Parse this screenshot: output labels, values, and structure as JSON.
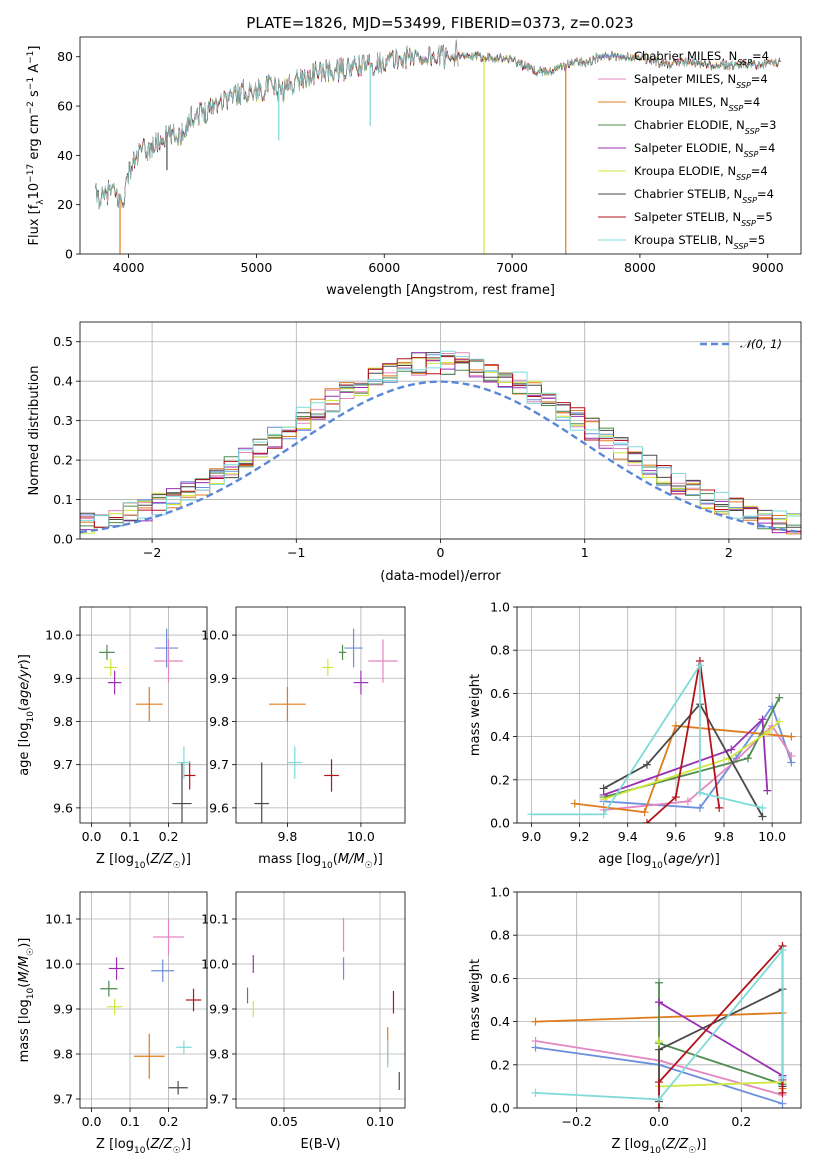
{
  "title": "PLATE=1826, MJD=53499, FIBERID=0373, z=0.023",
  "colors": {
    "Chabrier MILES": "#6b8fdc",
    "Salpeter MILES": "#e486c0",
    "Kroupa MILES": "#e07b1c",
    "Chabrier ELODIE": "#4f8a4f",
    "Salpeter ELODIE": "#9b2fb2",
    "Kroupa ELODIE": "#cfe83a",
    "Chabrier STELIB": "#4a4a4a",
    "Salpeter STELIB": "#b3141c",
    "Kroupa STELIB": "#7fdad9",
    "normal": "#5b87d8"
  },
  "legend": [
    {
      "label": "Chabrier MILES, N",
      "sub": "SSP",
      "tail": "=4",
      "key": "Chabrier MILES"
    },
    {
      "label": "Salpeter MILES, N",
      "sub": "SSP",
      "tail": "=4",
      "key": "Salpeter MILES"
    },
    {
      "label": "Kroupa MILES, N",
      "sub": "SSP",
      "tail": "=4",
      "key": "Kroupa MILES"
    },
    {
      "label": "Chabrier ELODIE, N",
      "sub": "SSP",
      "tail": "=3",
      "key": "Chabrier ELODIE"
    },
    {
      "label": "Salpeter ELODIE, N",
      "sub": "SSP",
      "tail": "=4",
      "key": "Salpeter ELODIE"
    },
    {
      "label": "Kroupa ELODIE, N",
      "sub": "SSP",
      "tail": "=4",
      "key": "Kroupa ELODIE"
    },
    {
      "label": "Chabrier STELIB, N",
      "sub": "SSP",
      "tail": "=4",
      "key": "Chabrier STELIB"
    },
    {
      "label": "Salpeter STELIB, N",
      "sub": "SSP",
      "tail": "=5",
      "key": "Salpeter STELIB"
    },
    {
      "label": "Kroupa STELIB, N",
      "sub": "SSP",
      "tail": "=5",
      "key": "Kroupa STELIB"
    }
  ],
  "normal_label": "𝒩(0, 1)",
  "chart_data": [
    {
      "id": "spectrum",
      "type": "line",
      "xlabel": "wavelength [Angstrom, rest frame]",
      "ylabel": "Flux [f_λ 10^-17 erg cm^-2 s^-1 A^-1]",
      "xlim": [
        3620,
        9260
      ],
      "ylim": [
        0,
        88
      ],
      "xticks": [
        4000,
        5000,
        6000,
        7000,
        8000,
        9000
      ],
      "yticks": [
        0,
        20,
        40,
        60,
        80
      ],
      "grid": false,
      "continuum": {
        "x": [
          3740,
          3800,
          3850,
          3900,
          3950,
          4000,
          4050,
          4100,
          4150,
          4200,
          4300,
          4400,
          4500,
          4600,
          4700,
          4800,
          4900,
          5000,
          5100,
          5200,
          5300,
          5400,
          5500,
          5600,
          5700,
          5800,
          5900,
          6000,
          6200,
          6400,
          6600,
          6800,
          7000,
          7100,
          7200,
          7300,
          7400,
          7500,
          7600,
          7700,
          7800,
          8000,
          8200,
          8400,
          8600,
          8800,
          9000,
          9100
        ],
        "y": [
          24,
          22,
          26,
          24,
          20,
          33,
          38,
          42,
          42,
          44,
          48,
          48,
          56,
          58,
          62,
          64,
          66,
          66,
          68,
          66,
          70,
          72,
          74,
          74,
          75,
          76,
          77,
          78,
          80,
          80,
          80,
          80,
          79,
          76,
          74,
          74,
          76,
          78,
          78,
          80,
          80,
          80,
          77,
          78,
          76,
          77,
          77,
          78
        ]
      },
      "dips": [
        {
          "x": 3933,
          "y": 0,
          "series": "Kroupa MILES"
        },
        {
          "x": 6780,
          "y": 0,
          "series": "Kroupa ELODIE"
        },
        {
          "x": 7420,
          "y": 0,
          "series": "Kroupa MILES"
        },
        {
          "x": 5890,
          "y": 52,
          "series": "Kroupa STELIB"
        },
        {
          "x": 5175,
          "y": 46,
          "series": "Kroupa STELIB"
        },
        {
          "x": 4300,
          "y": 34,
          "series": "Chabrier STELIB"
        }
      ]
    },
    {
      "id": "residuals",
      "type": "histogram",
      "xlabel": "(data-model)/error",
      "ylabel": "Normed distribution",
      "xlim": [
        -2.5,
        2.5
      ],
      "ylim": [
        0,
        0.55
      ],
      "xticks": [
        -2,
        -1,
        0,
        1,
        2
      ],
      "yticks": [
        0.0,
        0.1,
        0.2,
        0.3,
        0.4,
        0.5
      ],
      "bin_width": 0.1,
      "bin_start": -2.5,
      "grid": true,
      "legend_position": "top-right"
    },
    {
      "id": "age-vs-Z",
      "type": "errorbar",
      "xlabel": "Z [log10(Z/Z☉)]",
      "ylabel": "age [log10(age/yr)]",
      "xlim": [
        -0.03,
        0.3
      ],
      "ylim": [
        9.565,
        10.065
      ],
      "xticks": [
        0.0,
        0.1,
        0.2
      ],
      "yticks": [
        9.6,
        9.7,
        9.8,
        9.9,
        10.0
      ],
      "points": [
        {
          "s": "Chabrier MILES",
          "x": 0.195,
          "y": 9.97,
          "dx": 0.06,
          "dy": 0.09
        },
        {
          "s": "Salpeter MILES",
          "x": 0.2,
          "y": 9.94,
          "dx": 0.075,
          "dy": 0.1
        },
        {
          "s": "Kroupa MILES",
          "x": 0.15,
          "y": 9.84,
          "dx": 0.07,
          "dy": 0.08
        },
        {
          "s": "Chabrier ELODIE",
          "x": 0.04,
          "y": 9.96,
          "dx": 0.04,
          "dy": 0.035
        },
        {
          "s": "Salpeter ELODIE",
          "x": 0.06,
          "y": 9.89,
          "dx": 0.035,
          "dy": 0.055
        },
        {
          "s": "Kroupa ELODIE",
          "x": 0.05,
          "y": 9.925,
          "dx": 0.035,
          "dy": 0.04
        },
        {
          "s": "Chabrier STELIB",
          "x": 0.235,
          "y": 9.61,
          "dx": 0.05,
          "dy": 0.19
        },
        {
          "s": "Salpeter STELIB",
          "x": 0.255,
          "y": 9.675,
          "dx": 0.03,
          "dy": 0.065
        },
        {
          "s": "Kroupa STELIB",
          "x": 0.24,
          "y": 9.705,
          "dx": 0.035,
          "dy": 0.075
        }
      ]
    },
    {
      "id": "age-vs-mass",
      "type": "errorbar",
      "xlabel": "mass [log10(M/M☉)]",
      "ylabel": "",
      "xlim": [
        9.66,
        10.12
      ],
      "ylim": [
        9.565,
        10.065
      ],
      "xticks": [
        9.8,
        10.0
      ],
      "yticks": [
        9.6,
        9.7,
        9.8,
        9.9,
        10.0
      ],
      "points": [
        {
          "s": "Chabrier MILES",
          "x": 9.98,
          "y": 9.97,
          "dx": 0.05,
          "dy": 0.09
        },
        {
          "s": "Salpeter MILES",
          "x": 10.06,
          "y": 9.94,
          "dx": 0.08,
          "dy": 0.1
        },
        {
          "s": "Kroupa MILES",
          "x": 9.8,
          "y": 9.84,
          "dx": 0.1,
          "dy": 0.08
        },
        {
          "s": "Chabrier ELODIE",
          "x": 9.95,
          "y": 9.96,
          "dx": 0.02,
          "dy": 0.035
        },
        {
          "s": "Salpeter ELODIE",
          "x": 10.0,
          "y": 9.89,
          "dx": 0.04,
          "dy": 0.055
        },
        {
          "s": "Kroupa ELODIE",
          "x": 9.91,
          "y": 9.925,
          "dx": 0.03,
          "dy": 0.04
        },
        {
          "s": "Chabrier STELIB",
          "x": 9.73,
          "y": 9.61,
          "dx": 0.04,
          "dy": 0.19
        },
        {
          "s": "Salpeter STELIB",
          "x": 9.92,
          "y": 9.675,
          "dx": 0.04,
          "dy": 0.075
        },
        {
          "s": "Kroupa STELIB",
          "x": 9.82,
          "y": 9.705,
          "dx": 0.04,
          "dy": 0.075
        }
      ]
    },
    {
      "id": "weight-vs-age",
      "type": "line",
      "xlabel": "age [log10(age/yr)]",
      "ylabel": "mass weight",
      "xlim": [
        8.94,
        10.12
      ],
      "ylim": [
        0,
        1.0
      ],
      "xticks": [
        9.0,
        9.2,
        9.4,
        9.6,
        9.8,
        10.0
      ],
      "yticks": [
        0.0,
        0.2,
        0.4,
        0.6,
        0.8,
        1.0
      ],
      "series": [
        {
          "s": "Chabrier MILES",
          "x": [
            9.3,
            9.7,
            9.85,
            10.0,
            10.08
          ],
          "y": [
            0.1,
            0.07,
            0.3,
            0.54,
            0.28
          ]
        },
        {
          "s": "Salpeter MILES",
          "x": [
            9.3,
            9.65,
            9.84,
            10.0,
            10.08
          ],
          "y": [
            0.06,
            0.1,
            0.28,
            0.45,
            0.31
          ]
        },
        {
          "s": "Kroupa MILES",
          "x": [
            9.18,
            9.47,
            9.6,
            10.08
          ],
          "y": [
            0.09,
            0.05,
            0.45,
            0.4
          ]
        },
        {
          "s": "Chabrier ELODIE",
          "x": [
            9.3,
            9.9,
            10.03
          ],
          "y": [
            0.12,
            0.3,
            0.58
          ]
        },
        {
          "s": "Salpeter ELODIE",
          "x": [
            9.3,
            9.83,
            9.96,
            9.98
          ],
          "y": [
            0.13,
            0.34,
            0.48,
            0.15
          ]
        },
        {
          "s": "Kroupa ELODIE",
          "x": [
            9.3,
            9.82,
            9.98,
            10.03
          ],
          "y": [
            0.11,
            0.3,
            0.42,
            0.47
          ]
        },
        {
          "s": "Chabrier STELIB",
          "x": [
            9.3,
            9.48,
            9.7,
            9.96
          ],
          "y": [
            0.16,
            0.27,
            0.55,
            0.03
          ]
        },
        {
          "s": "Salpeter STELIB",
          "x": [
            9.48,
            9.6,
            9.7,
            9.78
          ],
          "y": [
            0.0,
            0.12,
            0.75,
            0.07
          ]
        },
        {
          "s": "Kroupa STELIB",
          "x": [
            9.0,
            9.3,
            9.7,
            9.7,
            9.96
          ],
          "y": [
            0.04,
            0.04,
            0.73,
            0.14,
            0.07
          ]
        }
      ]
    },
    {
      "id": "mass-vs-Z",
      "type": "errorbar",
      "xlabel": "Z [log10(Z/Z☉)]",
      "ylabel": "mass [log10(M/M☉)]",
      "xlim": [
        -0.03,
        0.3
      ],
      "ylim": [
        9.68,
        10.16
      ],
      "xticks": [
        0.0,
        0.1,
        0.2
      ],
      "yticks": [
        9.7,
        9.8,
        9.9,
        10.0,
        10.1
      ],
      "points": [
        {
          "s": "Chabrier MILES",
          "x": 0.185,
          "y": 9.985,
          "dx": 0.06,
          "dy": 0.05
        },
        {
          "s": "Salpeter MILES",
          "x": 0.2,
          "y": 10.06,
          "dx": 0.08,
          "dy": 0.08
        },
        {
          "s": "Kroupa MILES",
          "x": 0.15,
          "y": 9.795,
          "dx": 0.08,
          "dy": 0.1
        },
        {
          "s": "Chabrier ELODIE",
          "x": 0.045,
          "y": 9.945,
          "dx": 0.045,
          "dy": 0.035
        },
        {
          "s": "Salpeter ELODIE",
          "x": 0.065,
          "y": 9.99,
          "dx": 0.04,
          "dy": 0.05
        },
        {
          "s": "Kroupa ELODIE",
          "x": 0.06,
          "y": 9.905,
          "dx": 0.04,
          "dy": 0.035
        },
        {
          "s": "Chabrier STELIB",
          "x": 0.225,
          "y": 9.725,
          "dx": 0.05,
          "dy": 0.03
        },
        {
          "s": "Salpeter STELIB",
          "x": 0.265,
          "y": 9.92,
          "dx": 0.04,
          "dy": 0.05
        },
        {
          "s": "Kroupa STELIB",
          "x": 0.24,
          "y": 9.815,
          "dx": 0.04,
          "dy": 0.03
        }
      ]
    },
    {
      "id": "mass-vs-EBV",
      "type": "errorbar",
      "xlabel": "E(B-V)",
      "ylabel": "",
      "xlim": [
        0.025,
        0.113
      ],
      "ylim": [
        9.68,
        10.16
      ],
      "xticks": [
        0.05,
        0.1
      ],
      "yticks": [
        9.7,
        9.8,
        9.9,
        10.0,
        10.1
      ],
      "points": [
        {
          "s": "Chabrier MILES",
          "x": 0.081,
          "y": 9.99,
          "dx": 0,
          "dy": 0.05
        },
        {
          "s": "Salpeter MILES",
          "x": 0.081,
          "y": 10.065,
          "dx": 0,
          "dy": 0.075
        },
        {
          "s": "Kroupa MILES",
          "x": 0.104,
          "y": 9.82,
          "dx": 0,
          "dy": 0.08
        },
        {
          "s": "Chabrier ELODIE",
          "x": 0.031,
          "y": 9.93,
          "dx": 0,
          "dy": 0.035
        },
        {
          "s": "Salpeter ELODIE",
          "x": 0.034,
          "y": 10.0,
          "dx": 0,
          "dy": 0.04
        },
        {
          "s": "Kroupa ELODIE",
          "x": 0.034,
          "y": 9.9,
          "dx": 0,
          "dy": 0.035
        },
        {
          "s": "Chabrier STELIB",
          "x": 0.11,
          "y": 9.74,
          "dx": 0,
          "dy": 0.04
        },
        {
          "s": "Salpeter STELIB",
          "x": 0.107,
          "y": 9.915,
          "dx": 0,
          "dy": 0.05
        },
        {
          "s": "Kroupa STELIB",
          "x": 0.104,
          "y": 9.8,
          "dx": 0,
          "dy": 0.06
        }
      ]
    },
    {
      "id": "weight-vs-Z",
      "type": "line",
      "xlabel": "Z [log10(Z/Z☉)]",
      "ylabel": "mass weight",
      "xlim": [
        -0.345,
        0.345
      ],
      "ylim": [
        0,
        1.0
      ],
      "xticks": [
        -0.2,
        0.0,
        0.2
      ],
      "yticks": [
        0.0,
        0.2,
        0.4,
        0.6,
        0.8,
        1.0
      ],
      "series": [
        {
          "s": "Chabrier MILES",
          "x": [
            -0.3,
            0.0,
            0.3
          ],
          "y": [
            0.28,
            0.2,
            0.02
          ]
        },
        {
          "s": "Salpeter MILES",
          "x": [
            -0.3,
            0.0,
            0.3
          ],
          "y": [
            0.31,
            0.22,
            0.06
          ]
        },
        {
          "s": "Kroupa MILES",
          "x": [
            -0.3,
            0.3,
            0.3
          ],
          "y": [
            0.4,
            0.44,
            0.09
          ]
        },
        {
          "s": "Chabrier ELODIE",
          "x": [
            0.0,
            0.0,
            0.3
          ],
          "y": [
            0.58,
            0.3,
            0.11
          ]
        },
        {
          "s": "Salpeter ELODIE",
          "x": [
            0.0,
            0.0,
            0.3,
            0.3
          ],
          "y": [
            0.49,
            0.49,
            0.15,
            0.13
          ]
        },
        {
          "s": "Kroupa ELODIE",
          "x": [
            0.0,
            0.0,
            0.3
          ],
          "y": [
            0.31,
            0.1,
            0.12
          ]
        },
        {
          "s": "Chabrier STELIB",
          "x": [
            0.0,
            0.0,
            0.3,
            0.3
          ],
          "y": [
            0.03,
            0.27,
            0.55,
            0.1
          ]
        },
        {
          "s": "Salpeter STELIB",
          "x": [
            0.0,
            0.0,
            0.3,
            0.3
          ],
          "y": [
            0.0,
            0.12,
            0.75,
            0.07
          ]
        },
        {
          "s": "Kroupa STELIB",
          "x": [
            -0.3,
            0.0,
            0.3,
            0.3
          ],
          "y": [
            0.07,
            0.04,
            0.73,
            0.14
          ]
        }
      ]
    }
  ]
}
